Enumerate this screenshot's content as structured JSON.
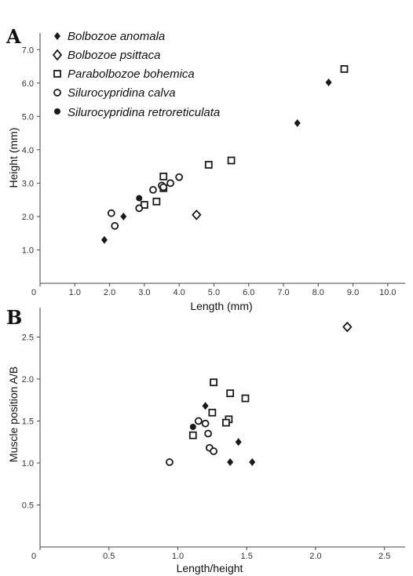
{
  "panel_a_label": "A",
  "panel_b_label": "B",
  "species": {
    "anomala": "Bolbozoe anomala",
    "psittaca": "Bolbozoe psittaca",
    "bohemica": "Parabolbozoe bohemica",
    "calva": "Silurocypridina calva",
    "retroreticulata": "Silurocypridina retroreticulata"
  },
  "chart_data": [
    {
      "type": "scatter",
      "panel": "A",
      "xlabel": "Length (mm)",
      "ylabel": "Height (mm)",
      "xlim": [
        0,
        10.5
      ],
      "ylim": [
        0,
        7.5
      ],
      "xticks": [
        "0",
        "1.0",
        "2.0",
        "3.0",
        "4.0",
        "5.0",
        "6.0",
        "7.0",
        "8.0",
        "9.0",
        "10.0"
      ],
      "yticks": [
        "1.0",
        "2.0",
        "3.0",
        "4.0",
        "5.0",
        "6.0",
        "7.0"
      ],
      "legend": "top-left",
      "grid": false,
      "series": [
        {
          "name": "Bolbozoe anomala",
          "marker": "filled-diamond",
          "points": [
            [
              1.85,
              1.3
            ],
            [
              2.4,
              2.0
            ],
            [
              7.4,
              4.8
            ],
            [
              8.3,
              6.02
            ]
          ]
        },
        {
          "name": "Bolbozoe psittaca",
          "marker": "open-diamond",
          "points": [
            [
              4.5,
              2.05
            ]
          ]
        },
        {
          "name": "Parabolbozoe bohemica",
          "marker": "open-square",
          "points": [
            [
              3.55,
              3.2
            ],
            [
              3.55,
              2.85
            ],
            [
              3.35,
              2.45
            ],
            [
              3.0,
              2.35
            ],
            [
              4.85,
              3.55
            ],
            [
              5.5,
              3.68
            ],
            [
              8.75,
              6.42
            ]
          ]
        },
        {
          "name": "Silurocypridina calva",
          "marker": "open-circle",
          "points": [
            [
              2.05,
              2.1
            ],
            [
              2.15,
              1.72
            ],
            [
              2.85,
              2.25
            ],
            [
              3.25,
              2.8
            ],
            [
              3.5,
              2.93
            ],
            [
              3.55,
              2.88
            ],
            [
              3.75,
              3.0
            ],
            [
              4.0,
              3.18
            ]
          ]
        },
        {
          "name": "Silurocypridina retroreticulata",
          "marker": "filled-circle",
          "points": [
            [
              2.85,
              2.55
            ]
          ]
        }
      ]
    },
    {
      "type": "scatter",
      "panel": "B",
      "xlabel": "Length/height",
      "ylabel": "Muscle position A/B",
      "xlim": [
        0,
        2.65
      ],
      "ylim": [
        0,
        2.85
      ],
      "xticks": [
        "0",
        "0.5",
        "1.0",
        "1.5",
        "2.0",
        "2.5"
      ],
      "yticks": [
        "0.5",
        "1.0",
        "1.5",
        "2.0",
        "2.5"
      ],
      "grid": false,
      "series": [
        {
          "name": "Bolbozoe anomala",
          "marker": "filled-diamond",
          "points": [
            [
              1.2,
              1.68
            ],
            [
              1.44,
              1.25
            ],
            [
              1.38,
              1.01
            ],
            [
              1.54,
              1.01
            ]
          ]
        },
        {
          "name": "Bolbozoe psittaca",
          "marker": "open-diamond",
          "points": [
            [
              2.23,
              2.62
            ]
          ]
        },
        {
          "name": "Parabolbozoe bohemica",
          "marker": "open-square",
          "points": [
            [
              1.26,
              1.96
            ],
            [
              1.38,
              1.83
            ],
            [
              1.49,
              1.77
            ],
            [
              1.25,
              1.6
            ],
            [
              1.37,
              1.52
            ],
            [
              1.35,
              1.48
            ],
            [
              1.11,
              1.33
            ]
          ]
        },
        {
          "name": "Silurocypridina calva",
          "marker": "open-circle",
          "points": [
            [
              1.15,
              1.5
            ],
            [
              1.2,
              1.47
            ],
            [
              1.22,
              1.35
            ],
            [
              1.23,
              1.18
            ],
            [
              1.26,
              1.14
            ],
            [
              0.94,
              1.01
            ]
          ]
        },
        {
          "name": "Silurocypridina retroreticulata",
          "marker": "filled-circle",
          "points": [
            [
              1.11,
              1.43
            ]
          ]
        }
      ]
    }
  ]
}
